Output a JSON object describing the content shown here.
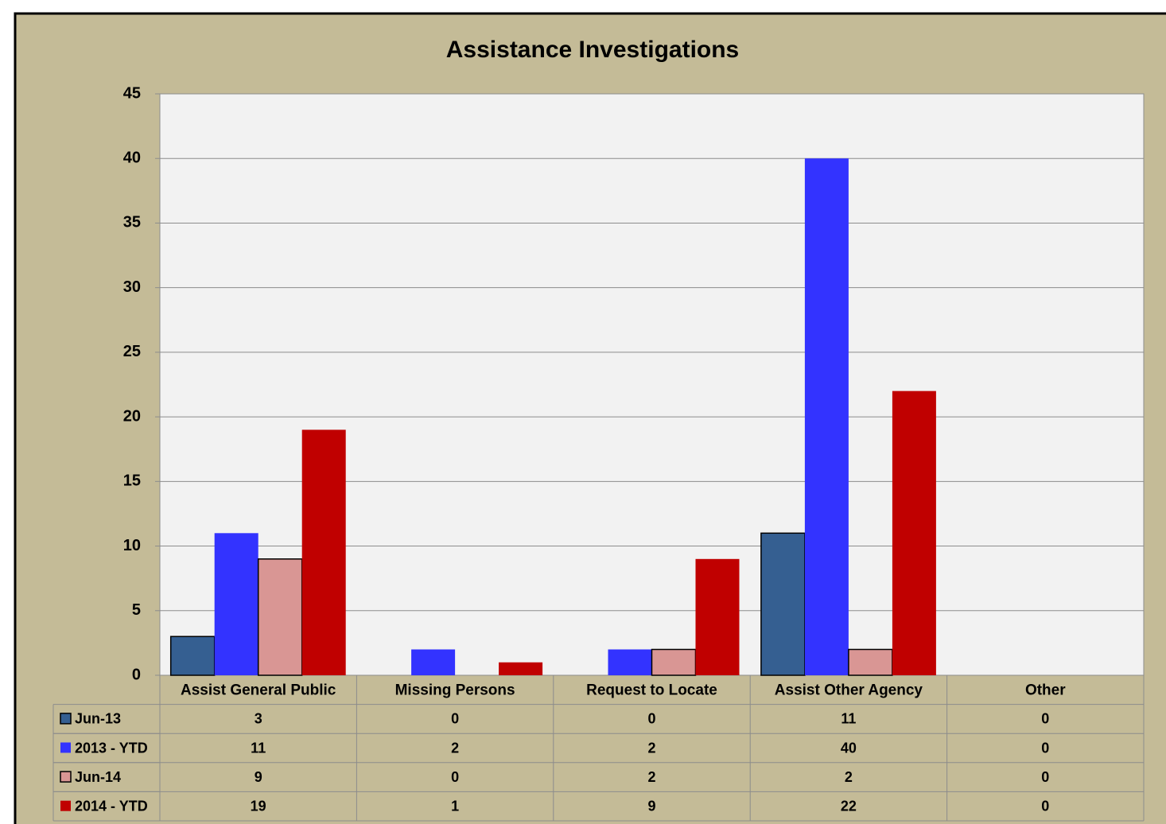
{
  "chart_data": {
    "type": "bar",
    "title": "Assistance Investigations",
    "categories": [
      "Assist General Public",
      "Missing Persons",
      "Request to Locate",
      "Assist Other Agency",
      "Other"
    ],
    "series": [
      {
        "name": "Jun-13",
        "color": "#355f91",
        "outline": true,
        "values": [
          3,
          0,
          0,
          11,
          0
        ]
      },
      {
        "name": "2013 - YTD",
        "color": "#3333ff",
        "outline": false,
        "values": [
          11,
          2,
          2,
          40,
          0
        ]
      },
      {
        "name": "Jun-14",
        "color": "#d99694",
        "outline": true,
        "values": [
          9,
          0,
          2,
          2,
          0
        ]
      },
      {
        "name": "2014 - YTD",
        "color": "#c00000",
        "outline": false,
        "values": [
          19,
          1,
          9,
          22,
          0
        ]
      }
    ],
    "ylim": [
      0,
      45
    ],
    "yticks": [
      0,
      5,
      10,
      15,
      20,
      25,
      30,
      35,
      40,
      45
    ],
    "grid": true,
    "data_table": true
  }
}
